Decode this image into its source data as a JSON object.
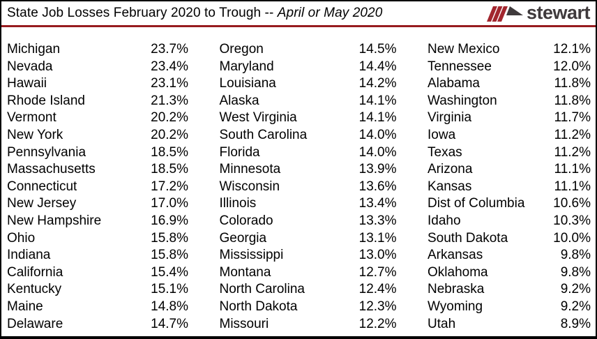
{
  "header": {
    "title_regular": "State Job Losses February 2020 to Trough -- ",
    "title_italic": "April or May 2020",
    "logo_text": "stewart"
  },
  "colors": {
    "separator_red": "#971B1E",
    "logo_stripe_red": "#A2262E",
    "logo_dark_gray": "#3F3A3C",
    "border_black": "#000000"
  },
  "chart_data": {
    "type": "table",
    "title": "State Job Losses February 2020 to Trough -- April or May 2020",
    "value_unit": "percent job loss (Feb 2020 to trough)",
    "layout": "three side-by-side two-cell columns, values right-aligned, sorted descending",
    "columns": [
      {
        "rows": [
          {
            "state": "Michigan",
            "value": "23.7%"
          },
          {
            "state": "Nevada",
            "value": "23.4%"
          },
          {
            "state": "Hawaii",
            "value": "23.1%"
          },
          {
            "state": "Rhode Island",
            "value": "21.3%"
          },
          {
            "state": "Vermont",
            "value": "20.2%"
          },
          {
            "state": "New York",
            "value": "20.2%"
          },
          {
            "state": "Pennsylvania",
            "value": "18.5%"
          },
          {
            "state": "Massachusetts",
            "value": "18.5%"
          },
          {
            "state": "Connecticut",
            "value": "17.2%"
          },
          {
            "state": "New Jersey",
            "value": "17.0%"
          },
          {
            "state": "New Hampshire",
            "value": "16.9%"
          },
          {
            "state": "Ohio",
            "value": "15.8%"
          },
          {
            "state": "Indiana",
            "value": "15.8%"
          },
          {
            "state": "California",
            "value": "15.4%"
          },
          {
            "state": "Kentucky",
            "value": "15.1%"
          },
          {
            "state": "Maine",
            "value": "14.8%"
          },
          {
            "state": "Delaware",
            "value": "14.7%"
          }
        ]
      },
      {
        "rows": [
          {
            "state": "Oregon",
            "value": "14.5%"
          },
          {
            "state": "Maryland",
            "value": "14.4%"
          },
          {
            "state": "Louisiana",
            "value": "14.2%"
          },
          {
            "state": "Alaska",
            "value": "14.1%"
          },
          {
            "state": "West Virginia",
            "value": "14.1%"
          },
          {
            "state": "South Carolina",
            "value": "14.0%"
          },
          {
            "state": "Florida",
            "value": "14.0%"
          },
          {
            "state": "Minnesota",
            "value": "13.9%"
          },
          {
            "state": "Wisconsin",
            "value": "13.6%"
          },
          {
            "state": "Illinois",
            "value": "13.4%"
          },
          {
            "state": "Colorado",
            "value": "13.3%"
          },
          {
            "state": "Georgia",
            "value": "13.1%"
          },
          {
            "state": "Mississippi",
            "value": "13.0%"
          },
          {
            "state": "Montana",
            "value": "12.7%"
          },
          {
            "state": "North Carolina",
            "value": "12.4%"
          },
          {
            "state": "North Dakota",
            "value": "12.3%"
          },
          {
            "state": "Missouri",
            "value": "12.2%"
          }
        ]
      },
      {
        "rows": [
          {
            "state": "New Mexico",
            "value": "12.1%"
          },
          {
            "state": "Tennessee",
            "value": "12.0%"
          },
          {
            "state": "Alabama",
            "value": "11.8%"
          },
          {
            "state": "Washington",
            "value": "11.8%"
          },
          {
            "state": "Virginia",
            "value": "11.7%"
          },
          {
            "state": "Iowa",
            "value": "11.2%"
          },
          {
            "state": "Texas",
            "value": "11.2%"
          },
          {
            "state": "Arizona",
            "value": "11.1%"
          },
          {
            "state": "Kansas",
            "value": "11.1%"
          },
          {
            "state": "Dist of Columbia",
            "value": "10.6%"
          },
          {
            "state": "Idaho",
            "value": "10.3%"
          },
          {
            "state": "South Dakota",
            "value": "10.0%"
          },
          {
            "state": "Arkansas",
            "value": "9.8%"
          },
          {
            "state": "Oklahoma",
            "value": "9.8%"
          },
          {
            "state": "Nebraska",
            "value": "9.2%"
          },
          {
            "state": "Wyoming",
            "value": "9.2%"
          },
          {
            "state": "Utah",
            "value": "8.9%"
          }
        ]
      }
    ]
  }
}
